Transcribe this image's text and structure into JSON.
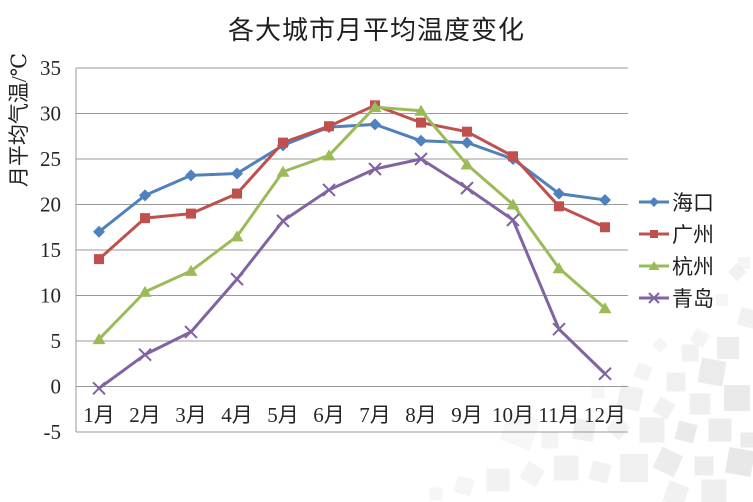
{
  "chart_data": {
    "type": "line",
    "title": "各大城市月平均温度变化",
    "xlabel": "",
    "ylabel": "月平均气温/℃",
    "categories": [
      "1月",
      "2月",
      "3月",
      "4月",
      "5月",
      "6月",
      "7月",
      "8月",
      "9月",
      "10月",
      "11月",
      "12月"
    ],
    "series": [
      {
        "name": "海口",
        "marker": "diamond",
        "color": "#4F81BD",
        "values": [
          17.0,
          21.0,
          23.2,
          23.4,
          26.5,
          28.5,
          28.8,
          27.0,
          26.8,
          25.0,
          21.2,
          20.5
        ]
      },
      {
        "name": "广州",
        "marker": "square",
        "color": "#C0504D",
        "values": [
          14.0,
          18.5,
          19.0,
          21.2,
          26.8,
          28.6,
          30.9,
          29.0,
          28.0,
          25.3,
          19.8,
          17.5
        ]
      },
      {
        "name": "杭州",
        "marker": "triangle",
        "color": "#9BBB59",
        "values": [
          5.2,
          10.4,
          12.7,
          16.5,
          23.6,
          25.4,
          30.7,
          30.3,
          24.4,
          20.0,
          13.0,
          8.6
        ]
      },
      {
        "name": "青岛",
        "marker": "x",
        "color": "#8064A2",
        "values": [
          -0.2,
          3.5,
          6.0,
          11.8,
          18.2,
          21.6,
          23.9,
          25.0,
          21.8,
          18.3,
          6.3,
          1.4
        ]
      }
    ],
    "ylim": [
      -5,
      35
    ],
    "ytick_step": 5,
    "yticks": [
      "35",
      "30",
      "25",
      "20",
      "15",
      "10",
      "5",
      "0",
      "-5"
    ],
    "grid": "horizontal",
    "legend_position": "right",
    "colors": {
      "gridline": "#999999",
      "axis_line": "#999999",
      "text": "#262626",
      "background": "#ffffff",
      "mosaic_decoration": "#e6e6e6"
    }
  }
}
